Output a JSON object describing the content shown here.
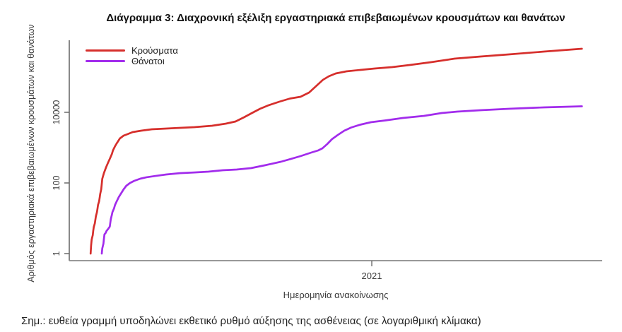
{
  "title": "Διάγραμμα 3: Διαχρονική εξέλιξη εργαστηριακά επιβεβαιωμένων κρουσμάτων και θανάτων",
  "note": "Σημ.: ευθεία γραμμή υποδηλώνει εκθετικό ρυθμό αύξησης της ασθένειας (σε λογαριθμική κλίμακα)",
  "chart_data": {
    "type": "line",
    "title": "Διάγραμμα 3: Διαχρονική εξέλιξη εργαστηριακά επιβεβαιωμένων κρουσμάτων και θανάτων",
    "xlabel": "Ημερομηνία ανακοίνωσης",
    "ylabel": "Αριθμός εργαστηριακά επιβεβαιωμένων κρουσμάτων και θανάτων",
    "yscale": "log10",
    "ylim": [
      1,
      1000000
    ],
    "grid": false,
    "legend_position": "top-left",
    "yticks": [
      {
        "label": "1",
        "value": 1
      },
      {
        "label": "100",
        "value": 100
      },
      {
        "label": "10000",
        "value": 10000
      }
    ],
    "xticks": [
      {
        "label": "2021",
        "t": 0.568
      }
    ],
    "series": [
      {
        "name": "Κρούσματα",
        "color": "#d62f2c",
        "points": [
          [
            0.04,
            1
          ],
          [
            0.041,
            1.7
          ],
          [
            0.042,
            2.5
          ],
          [
            0.044,
            3.3
          ],
          [
            0.045,
            4.4
          ],
          [
            0.046,
            5.7
          ],
          [
            0.048,
            7.2
          ],
          [
            0.049,
            9
          ],
          [
            0.05,
            11.5
          ],
          [
            0.052,
            15
          ],
          [
            0.053,
            19
          ],
          [
            0.054,
            24
          ],
          [
            0.056,
            30
          ],
          [
            0.057,
            38
          ],
          [
            0.058,
            48
          ],
          [
            0.06,
            66
          ],
          [
            0.061,
            95
          ],
          [
            0.062,
            131
          ],
          [
            0.065,
            190
          ],
          [
            0.069,
            275
          ],
          [
            0.073,
            380
          ],
          [
            0.076,
            480
          ],
          [
            0.08,
            660
          ],
          [
            0.082,
            830
          ],
          [
            0.086,
            1100
          ],
          [
            0.089,
            1320
          ],
          [
            0.095,
            1820
          ],
          [
            0.102,
            2190
          ],
          [
            0.109,
            2400
          ],
          [
            0.119,
            2750
          ],
          [
            0.135,
            3020
          ],
          [
            0.155,
            3310
          ],
          [
            0.182,
            3470
          ],
          [
            0.208,
            3630
          ],
          [
            0.235,
            3800
          ],
          [
            0.268,
            4170
          ],
          [
            0.294,
            4790
          ],
          [
            0.312,
            5500
          ],
          [
            0.328,
            7240
          ],
          [
            0.344,
            9770
          ],
          [
            0.358,
            12600
          ],
          [
            0.374,
            15850
          ],
          [
            0.394,
            19950
          ],
          [
            0.414,
            24550
          ],
          [
            0.434,
            27540
          ],
          [
            0.45,
            36300
          ],
          [
            0.463,
            54950
          ],
          [
            0.476,
            83200
          ],
          [
            0.487,
            104700
          ],
          [
            0.5,
            125900
          ],
          [
            0.52,
            144500
          ],
          [
            0.546,
            158500
          ],
          [
            0.573,
            173800
          ],
          [
            0.606,
            190500
          ],
          [
            0.639,
            218800
          ],
          [
            0.679,
            263000
          ],
          [
            0.723,
            331100
          ],
          [
            0.772,
            380200
          ],
          [
            0.825,
            436500
          ],
          [
            0.891,
            524800
          ],
          [
            0.962,
            631000
          ]
        ]
      },
      {
        "name": "Θάνατοι",
        "color": "#a22cec",
        "points": [
          [
            0.061,
            1
          ],
          [
            0.062,
            1.4
          ],
          [
            0.064,
            1.9
          ],
          [
            0.065,
            2.6
          ],
          [
            0.066,
            3.5
          ],
          [
            0.068,
            3.8
          ],
          [
            0.07,
            4.4
          ],
          [
            0.073,
            5
          ],
          [
            0.076,
            5.8
          ],
          [
            0.077,
            7.6
          ],
          [
            0.078,
            9.5
          ],
          [
            0.08,
            12.6
          ],
          [
            0.081,
            15
          ],
          [
            0.084,
            19
          ],
          [
            0.086,
            24
          ],
          [
            0.089,
            30
          ],
          [
            0.093,
            40
          ],
          [
            0.097,
            50
          ],
          [
            0.102,
            66
          ],
          [
            0.107,
            83
          ],
          [
            0.114,
            100
          ],
          [
            0.122,
            115
          ],
          [
            0.133,
            132
          ],
          [
            0.145,
            145
          ],
          [
            0.162,
            158
          ],
          [
            0.182,
            174
          ],
          [
            0.208,
            190
          ],
          [
            0.235,
            199
          ],
          [
            0.261,
            209
          ],
          [
            0.288,
            229
          ],
          [
            0.314,
            240
          ],
          [
            0.341,
            263
          ],
          [
            0.367,
            316
          ],
          [
            0.397,
            398
          ],
          [
            0.416,
            480
          ],
          [
            0.434,
            575
          ],
          [
            0.454,
            724
          ],
          [
            0.467,
            832
          ],
          [
            0.475,
            955
          ],
          [
            0.484,
            1260
          ],
          [
            0.493,
            1740
          ],
          [
            0.504,
            2290
          ],
          [
            0.516,
            3020
          ],
          [
            0.529,
            3715
          ],
          [
            0.546,
            4470
          ],
          [
            0.566,
            5250
          ],
          [
            0.593,
            5890
          ],
          [
            0.626,
            6920
          ],
          [
            0.666,
            7940
          ],
          [
            0.699,
            9550
          ],
          [
            0.728,
            10470
          ],
          [
            0.772,
            11480
          ],
          [
            0.825,
            12590
          ],
          [
            0.891,
            13800
          ],
          [
            0.962,
            14790
          ]
        ]
      }
    ]
  }
}
